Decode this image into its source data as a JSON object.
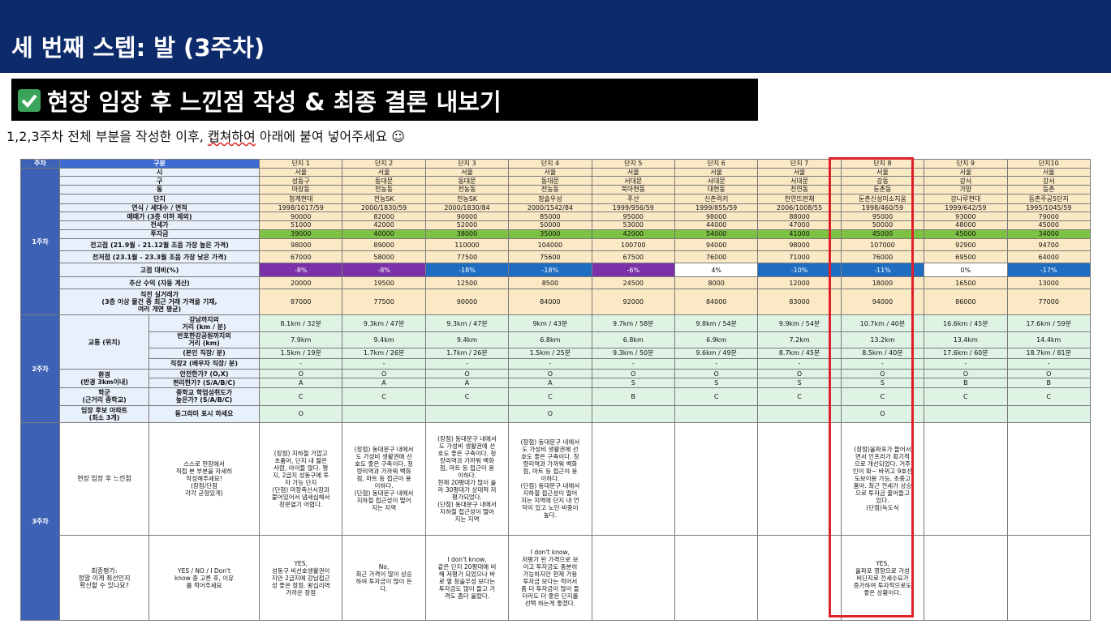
{
  "header": {
    "title": "세 번째 스텝: 발 (3주차)"
  },
  "section": {
    "title": "현장 임장 후 느낀점 작성 & 최종 결론 내보기"
  },
  "instruction": {
    "pre": "1,2,3주차 전체 부분을 작성한 이후, ",
    "squiggle": "캡쳐하여",
    "post": " 아래에 붙여 넣어주세요 ☺"
  },
  "table": {
    "head_week": "주차",
    "head_category": "구분",
    "complexes": [
      "단지 1",
      "단지 2",
      "단지 3",
      "단지 4",
      "단지 5",
      "단지 6",
      "단지 7",
      "단지 8",
      "단지 9",
      "단지10"
    ],
    "week1_label": "1주차",
    "week2_label": "2주차",
    "week3_label": "3주차",
    "rows_w1": [
      {
        "label": "시",
        "values": [
          "서울",
          "서울",
          "서울",
          "서울",
          "서울",
          "서울",
          "서울",
          "서울",
          "서울",
          "서울"
        ]
      },
      {
        "label": "구",
        "values": [
          "성동구",
          "동대문",
          "동대문",
          "동대문",
          "서대문",
          "서대문",
          "서대문",
          "강동",
          "강서",
          "강서"
        ]
      },
      {
        "label": "동",
        "values": [
          "마장동",
          "전농동",
          "전농동",
          "전농동",
          "북아현동",
          "대현동",
          "천연동",
          "둔촌동",
          "가양",
          "등촌"
        ]
      },
      {
        "label": "단지",
        "values": [
          "청계현대",
          "전농SK",
          "전농SK",
          "청솔우성",
          "푸산",
          "신촌럭키",
          "천연뜨란채",
          "둔촌신성미소지움",
          "강나루현대",
          "등촌주공5단지"
        ]
      },
      {
        "label": "연식 / 세대수 / 면적",
        "values": [
          "1998/1017/59",
          "2000/1830/59",
          "2000/1830/84",
          "2000/1542/84",
          "1999/956/59",
          "1999/855/59",
          "2006/1008/55",
          "1998/460/59",
          "1999/642/59",
          "1995/1045/59"
        ]
      },
      {
        "label": "매매가 (3층 이하 제외)",
        "values": [
          "90000",
          "82000",
          "90000",
          "85000",
          "95000",
          "98000",
          "88000",
          "95000",
          "93000",
          "79000"
        ]
      },
      {
        "label": "전세가",
        "values": [
          "51000",
          "42000",
          "52000",
          "50000",
          "53000",
          "44000",
          "47000",
          "50000",
          "48000",
          "45000"
        ]
      },
      {
        "label": "투자금",
        "values": [
          "39000",
          "40000",
          "38000",
          "35000",
          "42000",
          "54000",
          "41000",
          "45000",
          "45000",
          "34000"
        ]
      },
      {
        "label": "전고점 (21.9월 - 21.12월 조음 가장 높은 가격)",
        "values": [
          "98000",
          "89000",
          "110000",
          "104000",
          "100700",
          "94000",
          "98000",
          "107000",
          "92900",
          "94700"
        ]
      },
      {
        "label": "전저점 (23.1월 - 23.3월 조음 가장 낮은 가격)",
        "values": [
          "67000",
          "58000",
          "77500",
          "75600",
          "67500",
          "76000",
          "71000",
          "76000",
          "69500",
          "64000"
        ]
      },
      {
        "label": "고점 대비(%)",
        "values": [
          "-8%",
          "-8%",
          "-18%",
          "-18%",
          "-6%",
          "4%",
          "-10%",
          "-11%",
          "0%",
          "-17%"
        ]
      },
      {
        "label": "추산 수익 (자동 계산)",
        "values": [
          "20000",
          "19500",
          "12500",
          "8500",
          "24500",
          "8000",
          "12000",
          "18000",
          "16500",
          "13000"
        ]
      },
      {
        "label": "직전 실거래가\n(3층 이상 물건 중 최근 거래 가격을 기재,\n여러 개면 평균)",
        "values": [
          "87000",
          "77500",
          "90000",
          "84000",
          "92000",
          "84000",
          "83000",
          "94000",
          "86000",
          "77000"
        ]
      }
    ],
    "traffic_group": "교통 (위치)",
    "rows_traffic": [
      {
        "label": "강남까지의\n거리 (km / 분)",
        "values": [
          "8.1km / 32분",
          "9.3km / 47분",
          "9.3km / 47분",
          "9km / 43분",
          "9.7km / 58분",
          "9.8km / 54분",
          "9.9km / 54분",
          "10.7km / 40분",
          "16.6km / 45분",
          "17.6km / 59분"
        ]
      },
      {
        "label": "반포한강공원까지의\n거리 (km)",
        "values": [
          "7.9km",
          "9.4km",
          "9.4km",
          "6.8km",
          "6.8km",
          "6.9km",
          "7.2km",
          "13.2km",
          "13.4km",
          "14.4km"
        ]
      },
      {
        "label": "(본인 직장/ 분)",
        "values": [
          "1.5km / 19분",
          "1.7km / 26분",
          "1.7km / 26분",
          "1.5km / 25분",
          "9.3km / 50분",
          "9.6km / 49분",
          "8.7km / 45분",
          "8.5km / 40분",
          "17.6km / 60분",
          "18.7km / 81분"
        ]
      },
      {
        "label": "직장2 (배우자 직장/ 분)",
        "values": [
          "-",
          "-",
          "-",
          "-",
          "-",
          "-",
          "-",
          "-",
          "-",
          "-"
        ]
      }
    ],
    "env_group": "환경\n(반경 3km이내)",
    "rows_env": [
      {
        "label": "안전한가? (O,X)",
        "values": [
          "O",
          "O",
          "O",
          "O",
          "O",
          "O",
          "O",
          "O",
          "O",
          "O"
        ]
      },
      {
        "label": "편리한가? (S/A/B/C)",
        "values": [
          "A",
          "A",
          "A",
          "A",
          "S",
          "S",
          "S",
          "S",
          "B",
          "B"
        ]
      }
    ],
    "school_group": "학군\n(근거리 중학교)",
    "school_row": {
      "label": "중학교 학업성취도가\n높은가? (S/A/B/C)",
      "values": [
        "C",
        "C",
        "C",
        "C",
        "B",
        "C",
        "C",
        "C",
        "C",
        "C"
      ]
    },
    "cand_group": "임장 후보 아파트\n(최소 3개)",
    "cand_row": {
      "label": "동그라미 표시 하세요",
      "values": [
        "O",
        "",
        "",
        "O",
        "",
        "",
        "",
        "O",
        "",
        ""
      ]
    },
    "impression_group": "현장 임장 후 느낀점",
    "impression_label": "스스로 현장에서\n직접 본 부분을 자세히\n작성해주세요!\n(장점/단점\n각각 균형있게)",
    "impressions": [
      "(장점) 지하철 가깝고\n초품아, 단지 내 젊은\n사람, 아이들 많다. 평\n지, 2급지 성동구에 투\n자 가능 단지\n(단점) 마장축산시장과\n붙어있어서 냄새심해서\n창문열기 어렵다.",
      "(장점) 동대문구 내에서\n도 가성비 생활권에 선\n호도 좋은 구축이다. 청\n량리역과 가까워 백화\n점, 마트 등 접근이 용\n이하다.\n(단점) 동대문구 내에서\n지하철 접근성이 떨어\n지는 지역",
      "(장점) 동대문구 내에서\n도 가성비 생활권에 선\n호도 좋은 구축이다. 청\n량리역과 가까워 백화\n점, 마트 등 접근이 용\n이하다.\n현재 20평대가 많이 올\n라 30평대가 상대적 저\n평가되었다.\n(단점) 동대문구 내에서\n지하철 접근성이 떨어\n지는 지역",
      "(장점) 동대문구 내에서\n도 가성비 생활권에 선\n호도 좋은 구축이다. 청\n량리역과 가까워 백화\n점, 마트 등 접근이 용\n이하다.\n(단점) 동대문구 내에서\n지하철 접근성이 떨어\n지는 지역에 단지 내 언\n덕이 있고 노인 비중이\n높다.",
      "",
      "",
      "",
      "(장점)올파포가 들어서\n면서 인프라가 획기적\n으로 개선되었다. 거주\n인이 확~ 바뀌고 9호선\n도보이용 가능, 초중고\n품아. 최근 전세가 상승\n으로 투자금 줄어들고\n있다.\n(단점)녹도식",
      "",
      ""
    ],
    "final_group": "최종평가:\n정말 이게 최선인지\n확신할 수 있나요?",
    "final_label": "YES / NO / I Don't\nknow 중 고른 후, 이유\n를 적어주세요",
    "finals": [
      "YES,\n성동구 비선호생활권이\n지만 2급지에 강남접근\n성 좋은 장점. 왕십리역\n가까운 장점",
      "No,\n최근 가격이 많이 상승\n하여 투자금이 많이 든\n다.",
      "I don't know,\n같은 단지 20평대에 비\n해 저평가 되었으나 바\n로 옆 청솔우성 보다는\n투자금도 많이 들고 가\n격도 좀더 올랐다.",
      "I don't know,\n저평가 된 가격으로 보\n이고 투자금도 충분히\n가능하지만 현재 가용\n투자금 보다는 적어서\n좀 더 투자금이 많이 들\n더라도 더 좋은 단지를\n선택 하는게 좋겠다.",
      "",
      "",
      "",
      "YES,\n올파포 영향으로 가성\n비단지로 전세수요가\n증가하여 투자적으로도\n좋은 상황이다.",
      "",
      ""
    ],
    "colors": {
      "highlight_box": "#e0202a",
      "header_bg": "#0d2a6b"
    }
  }
}
